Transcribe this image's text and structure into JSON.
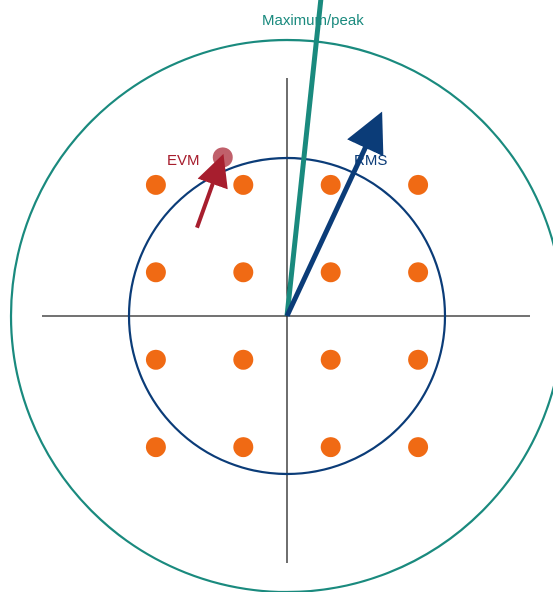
{
  "labels": {
    "peak": "Maximum/peak",
    "rms": "RMS",
    "evm": "EVM"
  },
  "colors": {
    "constellation_point": "#f06a14",
    "measured_point": "#c0606b",
    "peak": "#1a8a7e",
    "rms": "#0b3c78",
    "evm": "#a71e2e",
    "axis": "#222222",
    "background": "#ffffff"
  },
  "constellation": {
    "type": "16-QAM",
    "levels": [
      -3,
      -1,
      1,
      3
    ]
  },
  "vectors": {
    "peak_target": [
      1,
      9.35
    ],
    "rms_target": [
      2.08,
      4.47
    ],
    "evm_from": [
      -2.06,
      2.02
    ],
    "evm_to": [
      -1.47,
      3.63
    ]
  }
}
